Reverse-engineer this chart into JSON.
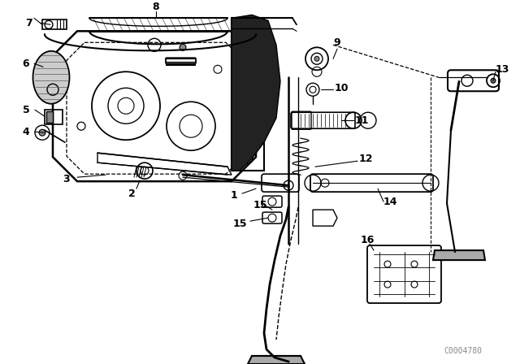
{
  "bg_color": "#ffffff",
  "line_color": "#000000",
  "watermark": "C0004780",
  "fig_w": 6.4,
  "fig_h": 4.48,
  "dpi": 100
}
